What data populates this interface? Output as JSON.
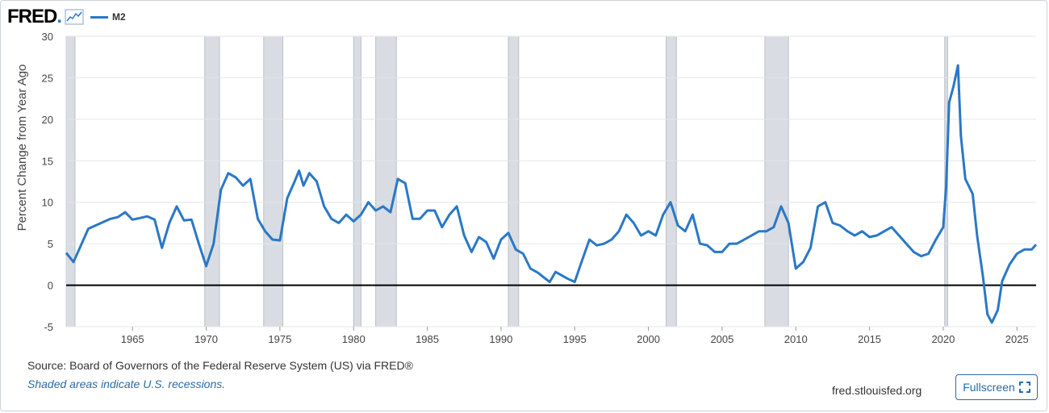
{
  "header": {
    "logo_text": "FRED",
    "logo_dot": "."
  },
  "legend": {
    "label": "M2"
  },
  "colors": {
    "line": "#2a78c6",
    "recession": "#d9dde3",
    "zero": "#000000",
    "grid": "#e3e6ea"
  },
  "chart_data": {
    "type": "line",
    "ylabel": "Percent Change from Year Ago",
    "xlim": [
      1960.5,
      2026.3
    ],
    "ylim": [
      -5,
      30
    ],
    "yticks": [
      -5,
      0,
      5,
      10,
      15,
      20,
      25,
      30
    ],
    "xticks": [
      1965,
      1970,
      1975,
      1980,
      1985,
      1990,
      1995,
      2000,
      2005,
      2010,
      2015,
      2020,
      2025
    ],
    "zero_line": 0,
    "recessions": [
      [
        1960.3,
        1961.1
      ],
      [
        1969.9,
        1970.9
      ],
      [
        1973.9,
        1975.2
      ],
      [
        1980.0,
        1980.5
      ],
      [
        1981.5,
        1982.9
      ],
      [
        1990.5,
        1991.2
      ],
      [
        2001.2,
        2001.9
      ],
      [
        2007.9,
        2009.5
      ],
      [
        2020.1,
        2020.3
      ]
    ],
    "series": [
      {
        "name": "M2",
        "points": [
          [
            1960.5,
            3.9
          ],
          [
            1961.0,
            2.8
          ],
          [
            1961.5,
            4.8
          ],
          [
            1962.0,
            6.8
          ],
          [
            1962.5,
            7.2
          ],
          [
            1963.0,
            7.6
          ],
          [
            1963.5,
            8.0
          ],
          [
            1964.0,
            8.2
          ],
          [
            1964.5,
            8.8
          ],
          [
            1965.0,
            7.9
          ],
          [
            1965.5,
            8.1
          ],
          [
            1966.0,
            8.3
          ],
          [
            1966.5,
            7.9
          ],
          [
            1967.0,
            4.5
          ],
          [
            1967.5,
            7.5
          ],
          [
            1968.0,
            9.5
          ],
          [
            1968.5,
            7.8
          ],
          [
            1969.0,
            7.9
          ],
          [
            1969.5,
            5.0
          ],
          [
            1970.0,
            2.3
          ],
          [
            1970.5,
            5.0
          ],
          [
            1971.0,
            11.5
          ],
          [
            1971.5,
            13.5
          ],
          [
            1972.0,
            13.0
          ],
          [
            1972.5,
            12.0
          ],
          [
            1973.0,
            12.8
          ],
          [
            1973.5,
            8.0
          ],
          [
            1974.0,
            6.5
          ],
          [
            1974.5,
            5.5
          ],
          [
            1975.0,
            5.4
          ],
          [
            1975.5,
            10.5
          ],
          [
            1976.0,
            12.5
          ],
          [
            1976.3,
            13.8
          ],
          [
            1976.6,
            12.0
          ],
          [
            1977.0,
            13.5
          ],
          [
            1977.5,
            12.5
          ],
          [
            1978.0,
            9.5
          ],
          [
            1978.5,
            8.0
          ],
          [
            1979.0,
            7.5
          ],
          [
            1979.5,
            8.5
          ],
          [
            1980.0,
            7.7
          ],
          [
            1980.5,
            8.5
          ],
          [
            1981.0,
            10.0
          ],
          [
            1981.5,
            9.0
          ],
          [
            1982.0,
            9.5
          ],
          [
            1982.5,
            8.8
          ],
          [
            1983.0,
            12.8
          ],
          [
            1983.5,
            12.3
          ],
          [
            1984.0,
            8.0
          ],
          [
            1984.5,
            8.0
          ],
          [
            1985.0,
            9.0
          ],
          [
            1985.5,
            9.0
          ],
          [
            1986.0,
            7.0
          ],
          [
            1986.5,
            8.5
          ],
          [
            1987.0,
            9.5
          ],
          [
            1987.5,
            6.0
          ],
          [
            1988.0,
            4.0
          ],
          [
            1988.5,
            5.8
          ],
          [
            1989.0,
            5.2
          ],
          [
            1989.5,
            3.2
          ],
          [
            1990.0,
            5.5
          ],
          [
            1990.5,
            6.3
          ],
          [
            1991.0,
            4.3
          ],
          [
            1991.5,
            3.8
          ],
          [
            1992.0,
            2.0
          ],
          [
            1992.5,
            1.5
          ],
          [
            1993.0,
            0.8
          ],
          [
            1993.3,
            0.4
          ],
          [
            1993.7,
            1.6
          ],
          [
            1994.0,
            1.3
          ],
          [
            1994.5,
            0.8
          ],
          [
            1995.0,
            0.4
          ],
          [
            1995.5,
            3.0
          ],
          [
            1996.0,
            5.5
          ],
          [
            1996.5,
            4.8
          ],
          [
            1997.0,
            5.0
          ],
          [
            1997.5,
            5.5
          ],
          [
            1998.0,
            6.5
          ],
          [
            1998.5,
            8.5
          ],
          [
            1999.0,
            7.5
          ],
          [
            1999.5,
            6.0
          ],
          [
            2000.0,
            6.5
          ],
          [
            2000.5,
            6.0
          ],
          [
            2001.0,
            8.5
          ],
          [
            2001.5,
            10.0
          ],
          [
            2002.0,
            7.2
          ],
          [
            2002.5,
            6.5
          ],
          [
            2003.0,
            8.5
          ],
          [
            2003.5,
            5.0
          ],
          [
            2004.0,
            4.8
          ],
          [
            2004.5,
            4.0
          ],
          [
            2005.0,
            4.0
          ],
          [
            2005.5,
            5.0
          ],
          [
            2006.0,
            5.0
          ],
          [
            2006.5,
            5.5
          ],
          [
            2007.0,
            6.0
          ],
          [
            2007.5,
            6.5
          ],
          [
            2008.0,
            6.5
          ],
          [
            2008.5,
            7.0
          ],
          [
            2009.0,
            9.5
          ],
          [
            2009.5,
            7.5
          ],
          [
            2010.0,
            2.0
          ],
          [
            2010.5,
            2.8
          ],
          [
            2011.0,
            4.5
          ],
          [
            2011.5,
            9.5
          ],
          [
            2012.0,
            10.0
          ],
          [
            2012.5,
            7.5
          ],
          [
            2013.0,
            7.2
          ],
          [
            2013.5,
            6.5
          ],
          [
            2014.0,
            6.0
          ],
          [
            2014.5,
            6.5
          ],
          [
            2015.0,
            5.8
          ],
          [
            2015.5,
            6.0
          ],
          [
            2016.0,
            6.5
          ],
          [
            2016.5,
            7.0
          ],
          [
            2017.0,
            6.0
          ],
          [
            2017.5,
            5.0
          ],
          [
            2018.0,
            4.0
          ],
          [
            2018.5,
            3.5
          ],
          [
            2019.0,
            3.8
          ],
          [
            2019.5,
            5.5
          ],
          [
            2020.0,
            7.0
          ],
          [
            2020.2,
            12.0
          ],
          [
            2020.4,
            22.0
          ],
          [
            2020.7,
            24.0
          ],
          [
            2021.0,
            26.5
          ],
          [
            2021.2,
            18.0
          ],
          [
            2021.5,
            12.8
          ],
          [
            2022.0,
            11.0
          ],
          [
            2022.3,
            6.0
          ],
          [
            2022.7,
            1.0
          ],
          [
            2023.0,
            -3.5
          ],
          [
            2023.3,
            -4.5
          ],
          [
            2023.7,
            -3.0
          ],
          [
            2024.0,
            0.5
          ],
          [
            2024.5,
            2.5
          ],
          [
            2025.0,
            3.8
          ],
          [
            2025.5,
            4.3
          ],
          [
            2026.0,
            4.3
          ],
          [
            2026.3,
            4.9
          ]
        ]
      }
    ]
  },
  "footer": {
    "source": "Source: Board of Governors of the Federal Reserve System (US) via FRED®",
    "recession_note": "Shaded areas indicate U.S. recessions.",
    "site": "fred.stlouisfed.org",
    "fullscreen": "Fullscreen"
  }
}
